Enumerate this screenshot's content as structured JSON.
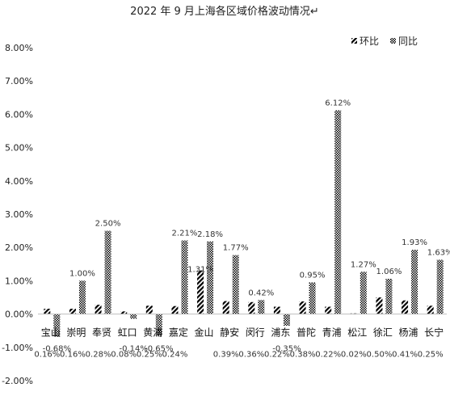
{
  "chart_data": {
    "type": "bar",
    "title": "2022 年 9 月上海各区域价格波动情况↵",
    "xlabel": "",
    "ylabel": "",
    "ylim": [
      -2,
      8
    ],
    "yticks": [
      "-2.00%",
      "-1.00%",
      "0.00%",
      "1.00%",
      "2.00%",
      "3.00%",
      "4.00%",
      "5.00%",
      "6.00%",
      "7.00%",
      "8.00%"
    ],
    "ytick_values": [
      -2,
      -1,
      0,
      1,
      2,
      3,
      4,
      5,
      6,
      7,
      8
    ],
    "grid": false,
    "legend_position": "top-right",
    "categories": [
      "宝山",
      "崇明",
      "奉贤",
      "虹口",
      "黄浦",
      "嘉定",
      "金山",
      "静安",
      "闵行",
      "浦东",
      "普陀",
      "青浦",
      "松江",
      "徐汇",
      "杨浦",
      "长宁"
    ],
    "series": [
      {
        "name": "环比",
        "pattern": "diagonal-stripes",
        "values": [
          0.16,
          0.16,
          0.28,
          0.08,
          0.25,
          0.24,
          1.31,
          0.39,
          0.36,
          0.22,
          0.38,
          0.22,
          0.02,
          0.5,
          0.41,
          0.25
        ],
        "labels": [
          "0.16%",
          "0.16%",
          "0.28%",
          "0.08%",
          "0.25%",
          "0.24%",
          "1.31%",
          "0.39%",
          "0.36%",
          "0.22%",
          "0.38%",
          "0.22%",
          "0.02%",
          "0.50%",
          "0.41%",
          "0.25%"
        ]
      },
      {
        "name": "同比",
        "pattern": "checker",
        "values": [
          -0.68,
          1.0,
          2.5,
          -0.14,
          -0.65,
          2.21,
          2.18,
          1.77,
          0.42,
          -0.35,
          0.95,
          6.12,
          1.27,
          1.06,
          1.93,
          1.63
        ],
        "labels": [
          "-0.68%",
          "1.00%",
          "2.50%",
          "-0.14%",
          "-0.65%",
          "2.21%",
          "2.18%",
          "1.77%",
          "0.42%",
          "-0.35%",
          "0.95%",
          "6.12%",
          "1.27%",
          "1.06%",
          "1.93%",
          "1.63%"
        ]
      }
    ]
  },
  "colors": {
    "axis": "#bfbfbf",
    "bar_ink": "#000000",
    "text": "#222222"
  }
}
